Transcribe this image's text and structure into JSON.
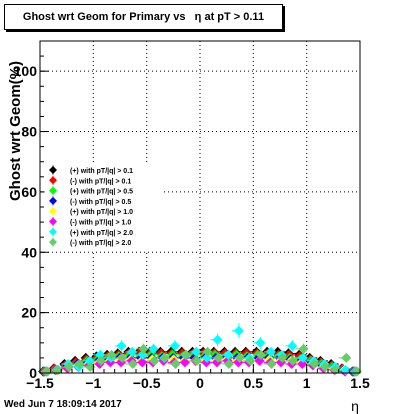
{
  "chart_data": {
    "type": "scatter",
    "title": "Ghost wrt Geom for Primary vs   η at pT > 0.11",
    "xlabel": "η",
    "ylabel": "Ghost wrt Geom(%)",
    "xlim": [
      -1.5,
      1.5
    ],
    "ylim": [
      0,
      110
    ],
    "x_ticks": [
      -1.5,
      -1,
      -0.5,
      0,
      0.5,
      1,
      1.5
    ],
    "x_tick_labels": [
      "−1.5",
      "−1",
      "−0.5",
      "0",
      "0.5",
      "1",
      "1.5"
    ],
    "y_ticks": [
      0,
      20,
      40,
      60,
      80,
      100
    ],
    "y_tick_labels": [
      "0",
      "20",
      "40",
      "60",
      "80",
      "100"
    ],
    "grid": true,
    "legend_position": "middle-left",
    "x": [
      -1.45,
      -1.35,
      -1.25,
      -1.15,
      -1.05,
      -0.95,
      -0.85,
      -0.75,
      -0.65,
      -0.55,
      -0.45,
      -0.35,
      -0.25,
      -0.15,
      -0.05,
      0.05,
      0.15,
      0.25,
      0.35,
      0.45,
      0.55,
      0.65,
      0.75,
      0.85,
      0.95,
      1.05,
      1.15,
      1.25,
      1.35,
      1.45
    ],
    "series": [
      {
        "name": "(+) with pT/|q| > 0.1",
        "color": "#000000",
        "values": [
          0.5,
          1.5,
          3,
          4,
          5,
          5.5,
          6,
          6.5,
          7,
          7,
          7,
          7,
          7,
          7,
          7,
          7,
          7,
          7,
          7,
          7,
          7,
          7,
          7,
          6.5,
          6,
          5,
          4,
          3,
          1.5,
          0.5
        ]
      },
      {
        "name": "(-) with pT/|q| > 0.1",
        "color": "#ff0000",
        "values": [
          0.5,
          1.5,
          2.5,
          3.5,
          4.5,
          5,
          5.5,
          6,
          6.5,
          6.5,
          6.5,
          6.5,
          6.5,
          6.5,
          6.5,
          6.5,
          6.5,
          6.5,
          6.5,
          6.5,
          6.5,
          6.5,
          6,
          6,
          5.5,
          4.5,
          3.5,
          2.5,
          1.5,
          0.5
        ]
      },
      {
        "name": "(+) with pT/|q| > 0.5",
        "color": "#00ff00",
        "values": [
          0.5,
          1,
          2,
          3,
          4,
          4.5,
          5,
          5.5,
          6,
          5.5,
          6,
          5.5,
          6,
          5.5,
          6,
          5.5,
          6,
          5.5,
          6,
          5.5,
          6,
          5.5,
          5.5,
          5,
          4.5,
          4,
          3,
          2,
          1,
          0.5
        ]
      },
      {
        "name": "(-) with pT/|q| > 0.5",
        "color": "#0000ff",
        "values": [
          0.5,
          1,
          2,
          3,
          3.5,
          4,
          4.5,
          5,
          5,
          5,
          5,
          5,
          5,
          5,
          5,
          5,
          5,
          5,
          5,
          5,
          5,
          5,
          5,
          4.5,
          4,
          3.5,
          2.5,
          1.5,
          1,
          0.5
        ]
      },
      {
        "name": "(+) with pT/|q| > 1.0",
        "color": "#ffff00",
        "values": [
          0.5,
          1,
          1.5,
          2.5,
          3,
          3.5,
          4,
          4.5,
          4.5,
          4,
          4.5,
          4,
          4.5,
          4,
          4,
          4.5,
          4,
          4.5,
          4,
          4.5,
          4,
          4.5,
          4,
          4,
          3.5,
          3,
          2,
          1.5,
          1,
          0.5
        ]
      },
      {
        "name": "(-) with pT/|q| > 1.0",
        "color": "#ff00ff",
        "values": [
          0.5,
          1,
          1.5,
          2,
          2.5,
          3,
          3.5,
          3.5,
          4,
          3.5,
          3.5,
          4,
          3.5,
          3.5,
          4,
          3.5,
          3.5,
          4,
          3.5,
          3.5,
          4,
          3.5,
          3.5,
          3,
          3,
          2.5,
          1.5,
          1,
          0.5,
          0.5
        ]
      },
      {
        "name": "(+) with pT/|q| > 2.0",
        "color": "#00ffff",
        "values": [
          0.5,
          1,
          3,
          2,
          4,
          6,
          5,
          9,
          7,
          6,
          8,
          5,
          9,
          6,
          7,
          5,
          11,
          6,
          14,
          5,
          10,
          7,
          6,
          9,
          5,
          4,
          3,
          2,
          1,
          0.5
        ]
      },
      {
        "name": "(-) with pT/|q| > 2.0",
        "color": "#66cc66",
        "values": [
          0.5,
          1,
          2,
          3,
          2,
          4,
          6,
          5,
          3,
          8,
          4,
          5,
          3,
          6,
          4,
          7,
          5,
          3,
          5,
          4,
          6,
          3,
          5,
          4,
          8,
          3,
          2,
          1,
          5,
          0.5
        ]
      }
    ]
  },
  "footer": {
    "timestamp": "Wed Jun  7 18:09:14 2017"
  }
}
